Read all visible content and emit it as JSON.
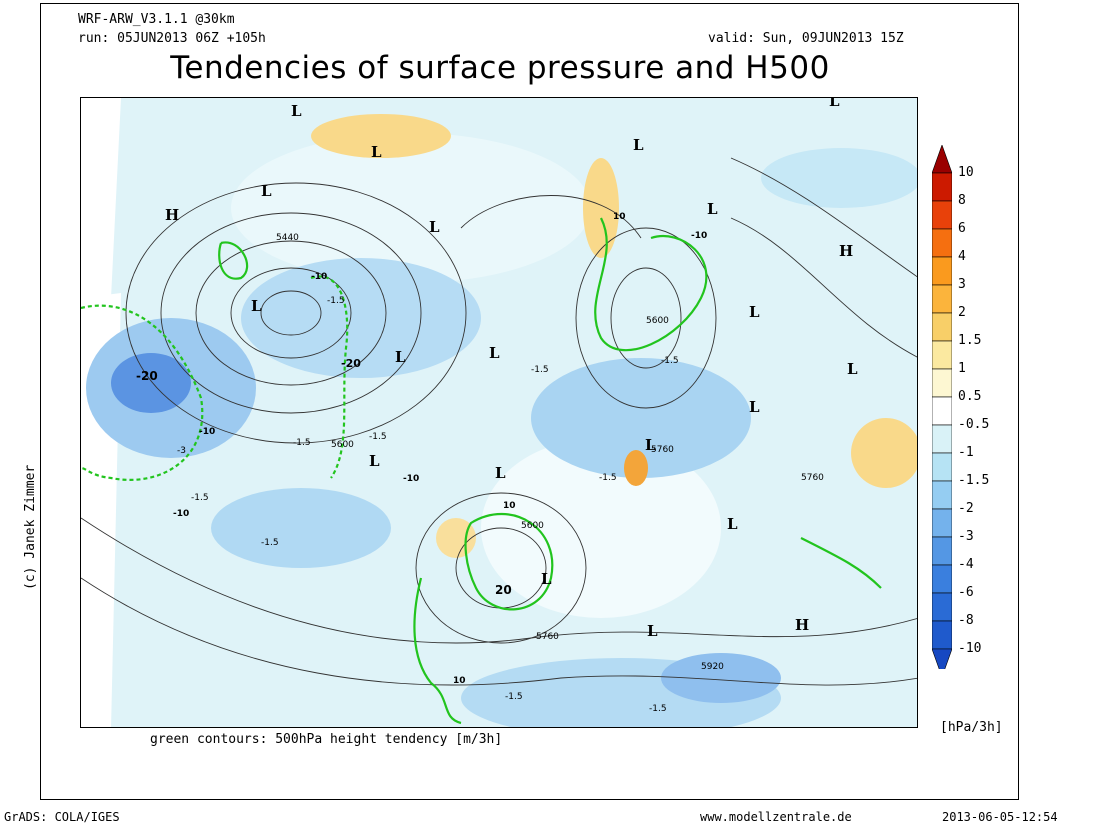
{
  "header": {
    "model": "WRF-ARW_V3.1.1 @30km",
    "run": "run: 05JUN2013 06Z +105h",
    "valid": "valid: Sun, 09JUN2013 15Z",
    "title": "Tendencies of surface pressure and H500"
  },
  "map": {
    "copyright": "(c) Janek Zimmer",
    "contour_note": "green contours: 500hPa height tendency [m/3h]",
    "pressure_systems": [
      {
        "type": "H"
      },
      {
        "type": "H"
      },
      {
        "type": "H"
      },
      {
        "type": "L"
      },
      {
        "type": "L"
      },
      {
        "type": "L"
      },
      {
        "type": "L"
      },
      {
        "type": "L"
      },
      {
        "type": "L"
      },
      {
        "type": "L"
      },
      {
        "type": "L"
      },
      {
        "type": "L"
      },
      {
        "type": "L"
      },
      {
        "type": "L"
      },
      {
        "type": "L"
      },
      {
        "type": "L"
      },
      {
        "type": "L"
      },
      {
        "type": "L"
      },
      {
        "type": "L"
      },
      {
        "type": "L"
      },
      {
        "type": "L"
      },
      {
        "type": "L"
      }
    ],
    "height_contour_labels": [
      "5440",
      "5600",
      "5600",
      "5600",
      "5760",
      "5760",
      "5760",
      "5920"
    ],
    "tendency_labels": [
      "-20",
      "-20",
      "-10",
      "-10",
      "-10",
      "-10",
      "-10",
      "10",
      "10",
      "10",
      "20",
      "-1.5",
      "-1.5",
      "-1.5",
      "-1.5",
      "-1.5",
      "-1.5",
      "-1.5",
      "-1.5",
      "-1.5",
      "-1.5",
      "-3"
    ]
  },
  "legend": {
    "units": "[hPa/3h]",
    "ticks": [
      "10",
      "8",
      "6",
      "4",
      "3",
      "2",
      "1.5",
      "1",
      "0.5",
      "-0.5",
      "-1",
      "-1.5",
      "-2",
      "-3",
      "-4",
      "-6",
      "-8",
      "-10"
    ],
    "colors": [
      "#9a0000",
      "#cc1a00",
      "#e8410a",
      "#f56f10",
      "#fa9a1e",
      "#fbb43c",
      "#f8cf68",
      "#fbe9a0",
      "#fdf7d2",
      "#ffffff",
      "#d9f2f7",
      "#b6e3f4",
      "#95cdf2",
      "#74b2ec",
      "#5497e4",
      "#3a7fde",
      "#2a6bd5",
      "#1f5acc",
      "#1648c2"
    ]
  },
  "footer": {
    "left": "GrADS: COLA/IGES",
    "center": "www.modellzentrale.de",
    "right": "2013-06-05-12:54"
  }
}
